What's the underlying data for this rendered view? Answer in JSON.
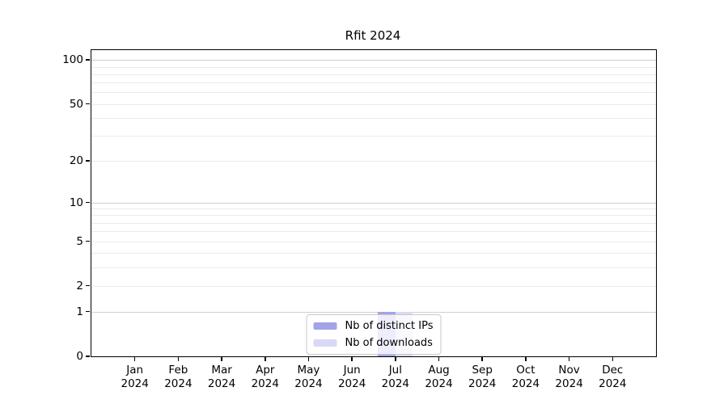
{
  "figure": {
    "background": "#ffffff"
  },
  "chart_data": {
    "type": "bar",
    "title": "Rfit 2024",
    "x_tick_months": [
      "Jan",
      "Feb",
      "Mar",
      "Apr",
      "May",
      "Jun",
      "Jul",
      "Aug",
      "Sep",
      "Oct",
      "Nov",
      "Dec"
    ],
    "x_tick_year": "2024",
    "series": [
      {
        "name": "Nb of distinct IPs",
        "color": "#a3a3e8",
        "values": [
          0,
          0,
          0,
          0,
          0,
          0,
          1,
          0,
          0,
          0,
          0,
          0
        ]
      },
      {
        "name": "Nb of downloads",
        "color": "#d9d9f6",
        "values": [
          0,
          0,
          0,
          0,
          0,
          0,
          1,
          0,
          0,
          0,
          0,
          0
        ]
      }
    ],
    "y_scale": "log1p",
    "y_max": 117,
    "y_ticks": [
      100,
      50,
      20,
      10,
      5,
      2,
      1,
      0
    ],
    "y_major_gridlines": [
      1,
      10,
      100
    ],
    "y_minor_gridlines": [
      2,
      3,
      4,
      5,
      6,
      7,
      8,
      9,
      20,
      30,
      40,
      50,
      60,
      70,
      80,
      90
    ],
    "bar_width_frac": 0.4,
    "grid": true,
    "legend_position": "lower center",
    "colors": {
      "grid_major": "#cfcfcf",
      "grid_minor": "#ebebeb",
      "axis": "#000000",
      "legend_border": "#c9c9c9",
      "text": "#000000"
    }
  }
}
